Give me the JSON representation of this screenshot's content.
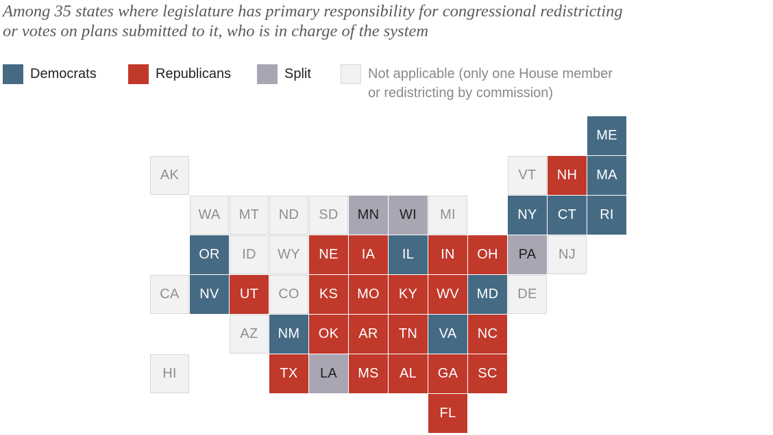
{
  "title": {
    "line1": "Among 35 states where legislature has primary responsibility for congressional redistricting",
    "line2": "or votes on plans submitted to it, who is in charge of the system"
  },
  "colors": {
    "dem": "#456a84",
    "rep": "#c0392b",
    "split": "#aaa5b2",
    "na": "#f2f2f2"
  },
  "legend": {
    "dem": "Democrats",
    "rep": "Republicans",
    "split": "Split",
    "na_line1": "Not applicable (only one House member",
    "na_line2": "or redistricting by commission)"
  },
  "states": [
    {
      "abbr": "ME",
      "cat": "dem"
    },
    {
      "abbr": "AK",
      "cat": "na"
    },
    {
      "abbr": "VT",
      "cat": "na"
    },
    {
      "abbr": "NH",
      "cat": "rep"
    },
    {
      "abbr": "MA",
      "cat": "dem"
    },
    {
      "abbr": "WA",
      "cat": "na"
    },
    {
      "abbr": "MT",
      "cat": "na"
    },
    {
      "abbr": "ND",
      "cat": "na"
    },
    {
      "abbr": "SD",
      "cat": "na"
    },
    {
      "abbr": "MN",
      "cat": "split"
    },
    {
      "abbr": "WI",
      "cat": "split"
    },
    {
      "abbr": "MI",
      "cat": "na"
    },
    {
      "abbr": "NY",
      "cat": "dem"
    },
    {
      "abbr": "CT",
      "cat": "dem"
    },
    {
      "abbr": "RI",
      "cat": "dem"
    },
    {
      "abbr": "OR",
      "cat": "dem"
    },
    {
      "abbr": "ID",
      "cat": "na"
    },
    {
      "abbr": "WY",
      "cat": "na"
    },
    {
      "abbr": "NE",
      "cat": "rep"
    },
    {
      "abbr": "IA",
      "cat": "rep"
    },
    {
      "abbr": "IL",
      "cat": "dem"
    },
    {
      "abbr": "IN",
      "cat": "rep"
    },
    {
      "abbr": "OH",
      "cat": "rep"
    },
    {
      "abbr": "PA",
      "cat": "split"
    },
    {
      "abbr": "NJ",
      "cat": "na"
    },
    {
      "abbr": "CA",
      "cat": "na"
    },
    {
      "abbr": "NV",
      "cat": "dem"
    },
    {
      "abbr": "UT",
      "cat": "rep"
    },
    {
      "abbr": "CO",
      "cat": "na"
    },
    {
      "abbr": "KS",
      "cat": "rep"
    },
    {
      "abbr": "MO",
      "cat": "rep"
    },
    {
      "abbr": "KY",
      "cat": "rep"
    },
    {
      "abbr": "WV",
      "cat": "rep"
    },
    {
      "abbr": "MD",
      "cat": "dem"
    },
    {
      "abbr": "DE",
      "cat": "na"
    },
    {
      "abbr": "AZ",
      "cat": "na"
    },
    {
      "abbr": "NM",
      "cat": "dem"
    },
    {
      "abbr": "OK",
      "cat": "rep"
    },
    {
      "abbr": "AR",
      "cat": "rep"
    },
    {
      "abbr": "TN",
      "cat": "rep"
    },
    {
      "abbr": "VA",
      "cat": "dem"
    },
    {
      "abbr": "NC",
      "cat": "rep"
    },
    {
      "abbr": "HI",
      "cat": "na"
    },
    {
      "abbr": "TX",
      "cat": "rep"
    },
    {
      "abbr": "LA",
      "cat": "split"
    },
    {
      "abbr": "MS",
      "cat": "rep"
    },
    {
      "abbr": "AL",
      "cat": "rep"
    },
    {
      "abbr": "GA",
      "cat": "rep"
    },
    {
      "abbr": "SC",
      "cat": "rep"
    },
    {
      "abbr": "FL",
      "cat": "rep"
    }
  ]
}
